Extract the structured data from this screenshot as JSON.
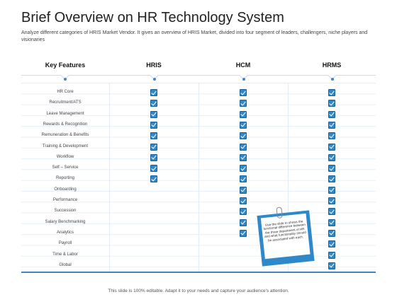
{
  "slide": {
    "title": "Brief Overview on HR Technology System",
    "subtitle": "Analyze  different  categories of HRIS Market Vendor.  It gives an overview of HRIS Market, divided into four segment of leaders, challengers, niche players and visionaries"
  },
  "table": {
    "headers": [
      "Key Features",
      "HRIS",
      "HCM",
      "HRMS"
    ],
    "rows": [
      {
        "feature": "HR Core",
        "hris": true,
        "hcm": true,
        "hrms": true
      },
      {
        "feature": "Recruitment/ATS",
        "hris": true,
        "hcm": true,
        "hrms": true
      },
      {
        "feature": "Leave Management",
        "hris": true,
        "hcm": true,
        "hrms": true
      },
      {
        "feature": "Rewards & Recognition",
        "hris": true,
        "hcm": true,
        "hrms": true
      },
      {
        "feature": "Remuneration & Benefits",
        "hris": true,
        "hcm": true,
        "hrms": true
      },
      {
        "feature": "Training & Development",
        "hris": true,
        "hcm": true,
        "hrms": true
      },
      {
        "feature": "Workflow",
        "hris": true,
        "hcm": true,
        "hrms": true
      },
      {
        "feature": "Self – Service",
        "hris": true,
        "hcm": true,
        "hrms": true
      },
      {
        "feature": "Reporting",
        "hris": true,
        "hcm": true,
        "hrms": true
      },
      {
        "feature": "Onboarding",
        "hris": false,
        "hcm": true,
        "hrms": true
      },
      {
        "feature": "Performance",
        "hris": false,
        "hcm": true,
        "hrms": true
      },
      {
        "feature": "Succession",
        "hris": false,
        "hcm": true,
        "hrms": true
      },
      {
        "feature": "Salary Benchmarking",
        "hris": false,
        "hcm": true,
        "hrms": true
      },
      {
        "feature": "Analytics",
        "hris": false,
        "hcm": true,
        "hrms": true
      },
      {
        "feature": "Payroll",
        "hris": false,
        "hcm": false,
        "hrms": true
      },
      {
        "feature": "Time & Labor",
        "hris": false,
        "hcm": false,
        "hrms": true
      },
      {
        "feature": "Global",
        "hris": false,
        "hcm": false,
        "hrms": true
      }
    ]
  },
  "note": {
    "text": "Use the slide to shows the functional difference between the three department of HR and what functionality should be associated with each."
  },
  "footer": {
    "text": "This slide is 100% editable. Adapt it to your needs and capture your audience's attention."
  },
  "colors": {
    "accent": "#2e88c9",
    "grid": "#e6eef8",
    "bottom_line": "#4a7fc0"
  },
  "icons": {
    "check": "checkbox-checked-icon",
    "clip": "paperclip-icon"
  }
}
